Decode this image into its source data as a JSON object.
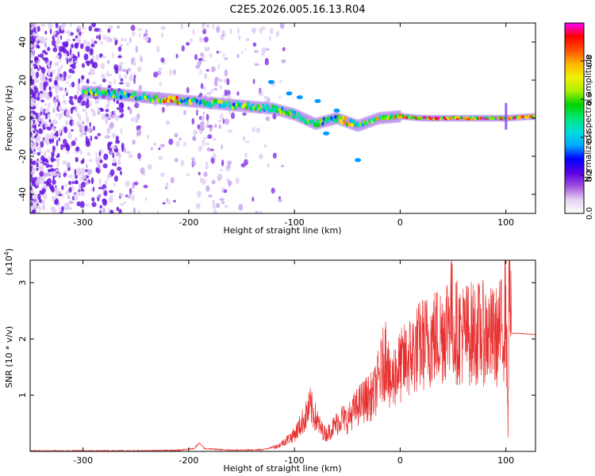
{
  "title": "C2E5.2026.005.16.13.R04",
  "chart_data": [
    {
      "type": "heatmap",
      "xlabel": "Height of straight line (km)",
      "ylabel": "Frequency (Hz)",
      "xlim": [
        -350,
        128
      ],
      "ylim": [
        -50,
        50
      ],
      "xticks": [
        -300,
        -200,
        -100,
        0,
        100
      ],
      "yticks": [
        -40,
        -20,
        0,
        20,
        40
      ],
      "ridge": {
        "x": [
          -298,
          -280,
          -260,
          -240,
          -220,
          -200,
          -180,
          -160,
          -140,
          -120,
          -100,
          -80,
          -60,
          -40,
          -20,
          0,
          20,
          40,
          60,
          80,
          100,
          128
        ],
        "freq": [
          14,
          13,
          12,
          11,
          10,
          9,
          8,
          7,
          6,
          5,
          2,
          -3,
          0,
          -4,
          0,
          1,
          0,
          0,
          0,
          0,
          0,
          1
        ]
      },
      "colorbar": {
        "label": "Normalized spectral amplitude",
        "range": [
          0,
          1
        ],
        "ticks": [
          0.0,
          0.2,
          0.4,
          0.6,
          0.8
        ],
        "tick_labels": [
          "0.0",
          "0.2",
          "0.4",
          "0.6",
          "0.8"
        ],
        "colors": [
          "#ffffff",
          "#e6d2f2",
          "#a050dc",
          "#5a00e6",
          "#0000ff",
          "#00aaff",
          "#00dcdc",
          "#00e678",
          "#00d200",
          "#aaf000",
          "#f0f000",
          "#ffb400",
          "#ff5000",
          "#ff0000",
          "#ff00ff"
        ]
      }
    },
    {
      "type": "line",
      "xlabel": "Height of straight line (km)",
      "ylabel": "SNR (10 * v/v)",
      "y_multiplier": "(x10",
      "y_multiplier_exp": "4",
      "y_multiplier_close": ")",
      "xlim": [
        -350,
        128
      ],
      "ylim": [
        0,
        3.4
      ],
      "xticks": [
        -300,
        -200,
        -100,
        0,
        100
      ],
      "yticks": [
        1,
        2,
        3
      ],
      "color": "#e83030",
      "series": [
        {
          "name": "SNR",
          "x": [
            -350,
            -300,
            -250,
            -210,
            -195,
            -190,
            -185,
            -160,
            -130,
            -115,
            -100,
            -95,
            -90,
            -85,
            -80,
            -75,
            -70,
            -65,
            -60,
            -55,
            -50,
            -45,
            -40,
            -35,
            -30,
            -25,
            -20,
            -15,
            -12,
            -10,
            -5,
            0,
            5,
            10,
            20,
            30,
            40,
            45,
            48,
            50,
            55,
            60,
            70,
            80,
            90,
            95,
            98,
            100,
            102,
            103,
            105,
            110,
            128
          ],
          "y": [
            0.01,
            0.01,
            0.01,
            0.02,
            0.05,
            0.15,
            0.05,
            0.02,
            0.03,
            0.1,
            0.3,
            0.45,
            0.6,
            0.8,
            0.6,
            0.4,
            0.3,
            0.4,
            0.5,
            0.6,
            0.55,
            0.7,
            0.8,
            0.9,
            0.95,
            1.0,
            1.3,
            1.6,
            1.9,
            1.1,
            1.4,
            1.5,
            1.6,
            1.7,
            1.9,
            2.0,
            2.1,
            2.3,
            2.6,
            2.2,
            2.1,
            2.1,
            2.1,
            2.1,
            2.0,
            2.15,
            2.2,
            2.7,
            0.4,
            3.3,
            2.1,
            2.1,
            2.08
          ]
        }
      ]
    }
  ]
}
